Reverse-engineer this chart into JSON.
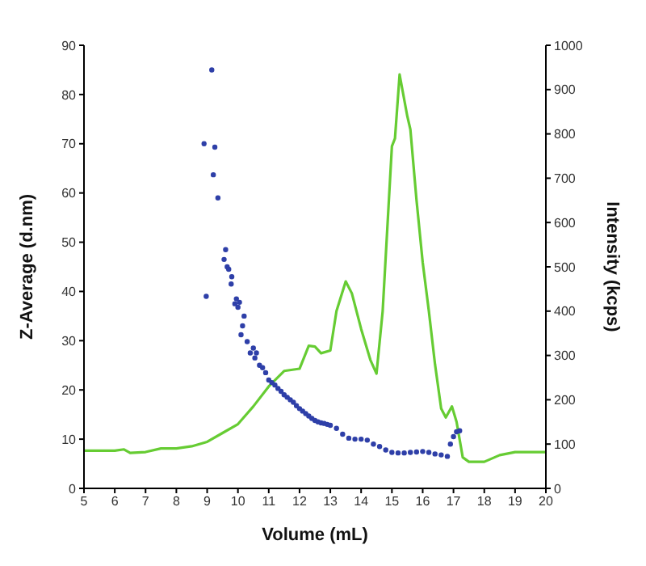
{
  "chart_data": {
    "type": "scatter",
    "xlabel": "Volume (mL)",
    "ylabel": "Z-Average (d.nm)",
    "y2label": "Intensity (kcps)",
    "xlim": [
      5,
      20
    ],
    "xticks": [
      5,
      6,
      7,
      8,
      9,
      10,
      11,
      12,
      13,
      14,
      15,
      16,
      17,
      18,
      19,
      20
    ],
    "ylim": [
      0,
      90
    ],
    "yticks": [
      0,
      10,
      20,
      30,
      40,
      50,
      60,
      70,
      80,
      90
    ],
    "y2lim": [
      0,
      1000
    ],
    "y2ticks": [
      0,
      100,
      200,
      300,
      400,
      500,
      600,
      700,
      800,
      900,
      1000
    ],
    "series": [
      {
        "color": "#2e3fa8",
        "marker": "circle",
        "x": [
          8.9,
          8.97,
          9.15,
          9.2,
          9.25,
          9.35,
          9.55,
          9.6,
          9.65,
          9.7,
          9.78,
          9.8,
          9.9,
          9.95,
          10.0,
          10.05,
          10.1,
          10.15,
          10.2,
          10.3,
          10.4,
          10.5,
          10.55,
          10.6,
          10.7,
          10.8,
          10.9,
          11.0,
          11.1,
          11.2,
          11.3,
          11.4,
          11.5,
          11.6,
          11.7,
          11.8,
          11.9,
          12.0,
          12.1,
          12.2,
          12.3,
          12.4,
          12.5,
          12.6,
          12.7,
          12.8,
          12.9,
          13.0,
          13.2,
          13.4,
          13.6,
          13.8,
          14.0,
          14.2,
          14.4,
          14.6,
          14.8,
          15.0,
          15.2,
          15.4,
          15.6,
          15.8,
          16.0,
          16.2,
          16.4,
          16.6,
          16.8,
          16.9,
          17.0,
          17.1,
          17.2
        ],
        "values": [
          70,
          39,
          85,
          63.7,
          69.3,
          59,
          46.5,
          48.5,
          45,
          44.5,
          41.5,
          43,
          37.5,
          38.5,
          36.8,
          37.8,
          31.2,
          33,
          35,
          29.8,
          27.5,
          28.5,
          26.5,
          27.5,
          25,
          24.5,
          23.5,
          22,
          21.5,
          21,
          20.3,
          19.7,
          19,
          18.5,
          18,
          17.5,
          16.8,
          16.2,
          15.7,
          15.2,
          14.7,
          14.2,
          13.8,
          13.5,
          13.3,
          13.2,
          13,
          12.8,
          12.2,
          11,
          10.2,
          10,
          10,
          9.8,
          9,
          8.5,
          7.8,
          7.3,
          7.2,
          7.2,
          7.3,
          7.4,
          7.5,
          7.3,
          7,
          6.8,
          6.5,
          9,
          10.5,
          11.5,
          11.7
        ]
      },
      {
        "type": "line",
        "axis": "y2",
        "color": "#66cc33",
        "marker": "none",
        "x": [
          5,
          6,
          6.3,
          6.5,
          7,
          7.5,
          8,
          8.5,
          9,
          9.5,
          10,
          10.5,
          11,
          11.5,
          12,
          12.3,
          12.5,
          12.7,
          13,
          13.2,
          13.5,
          13.7,
          14,
          14.3,
          14.5,
          14.7,
          15,
          15.1,
          15.25,
          15.5,
          15.6,
          15.8,
          16,
          16.2,
          16.4,
          16.6,
          16.75,
          16.95,
          17.1,
          17.3,
          17.5,
          18,
          18.5,
          19,
          20
        ],
        "values": [
          85,
          85,
          88,
          80,
          82,
          90,
          90,
          95,
          105,
          125,
          145,
          185,
          230,
          265,
          270,
          322,
          320,
          305,
          311,
          400,
          467,
          440,
          360,
          290,
          259,
          400,
          772,
          790,
          934,
          840,
          810,
          650,
          510,
          400,
          280,
          180,
          160,
          185,
          150,
          70,
          60,
          60,
          75,
          82,
          82
        ]
      }
    ]
  }
}
